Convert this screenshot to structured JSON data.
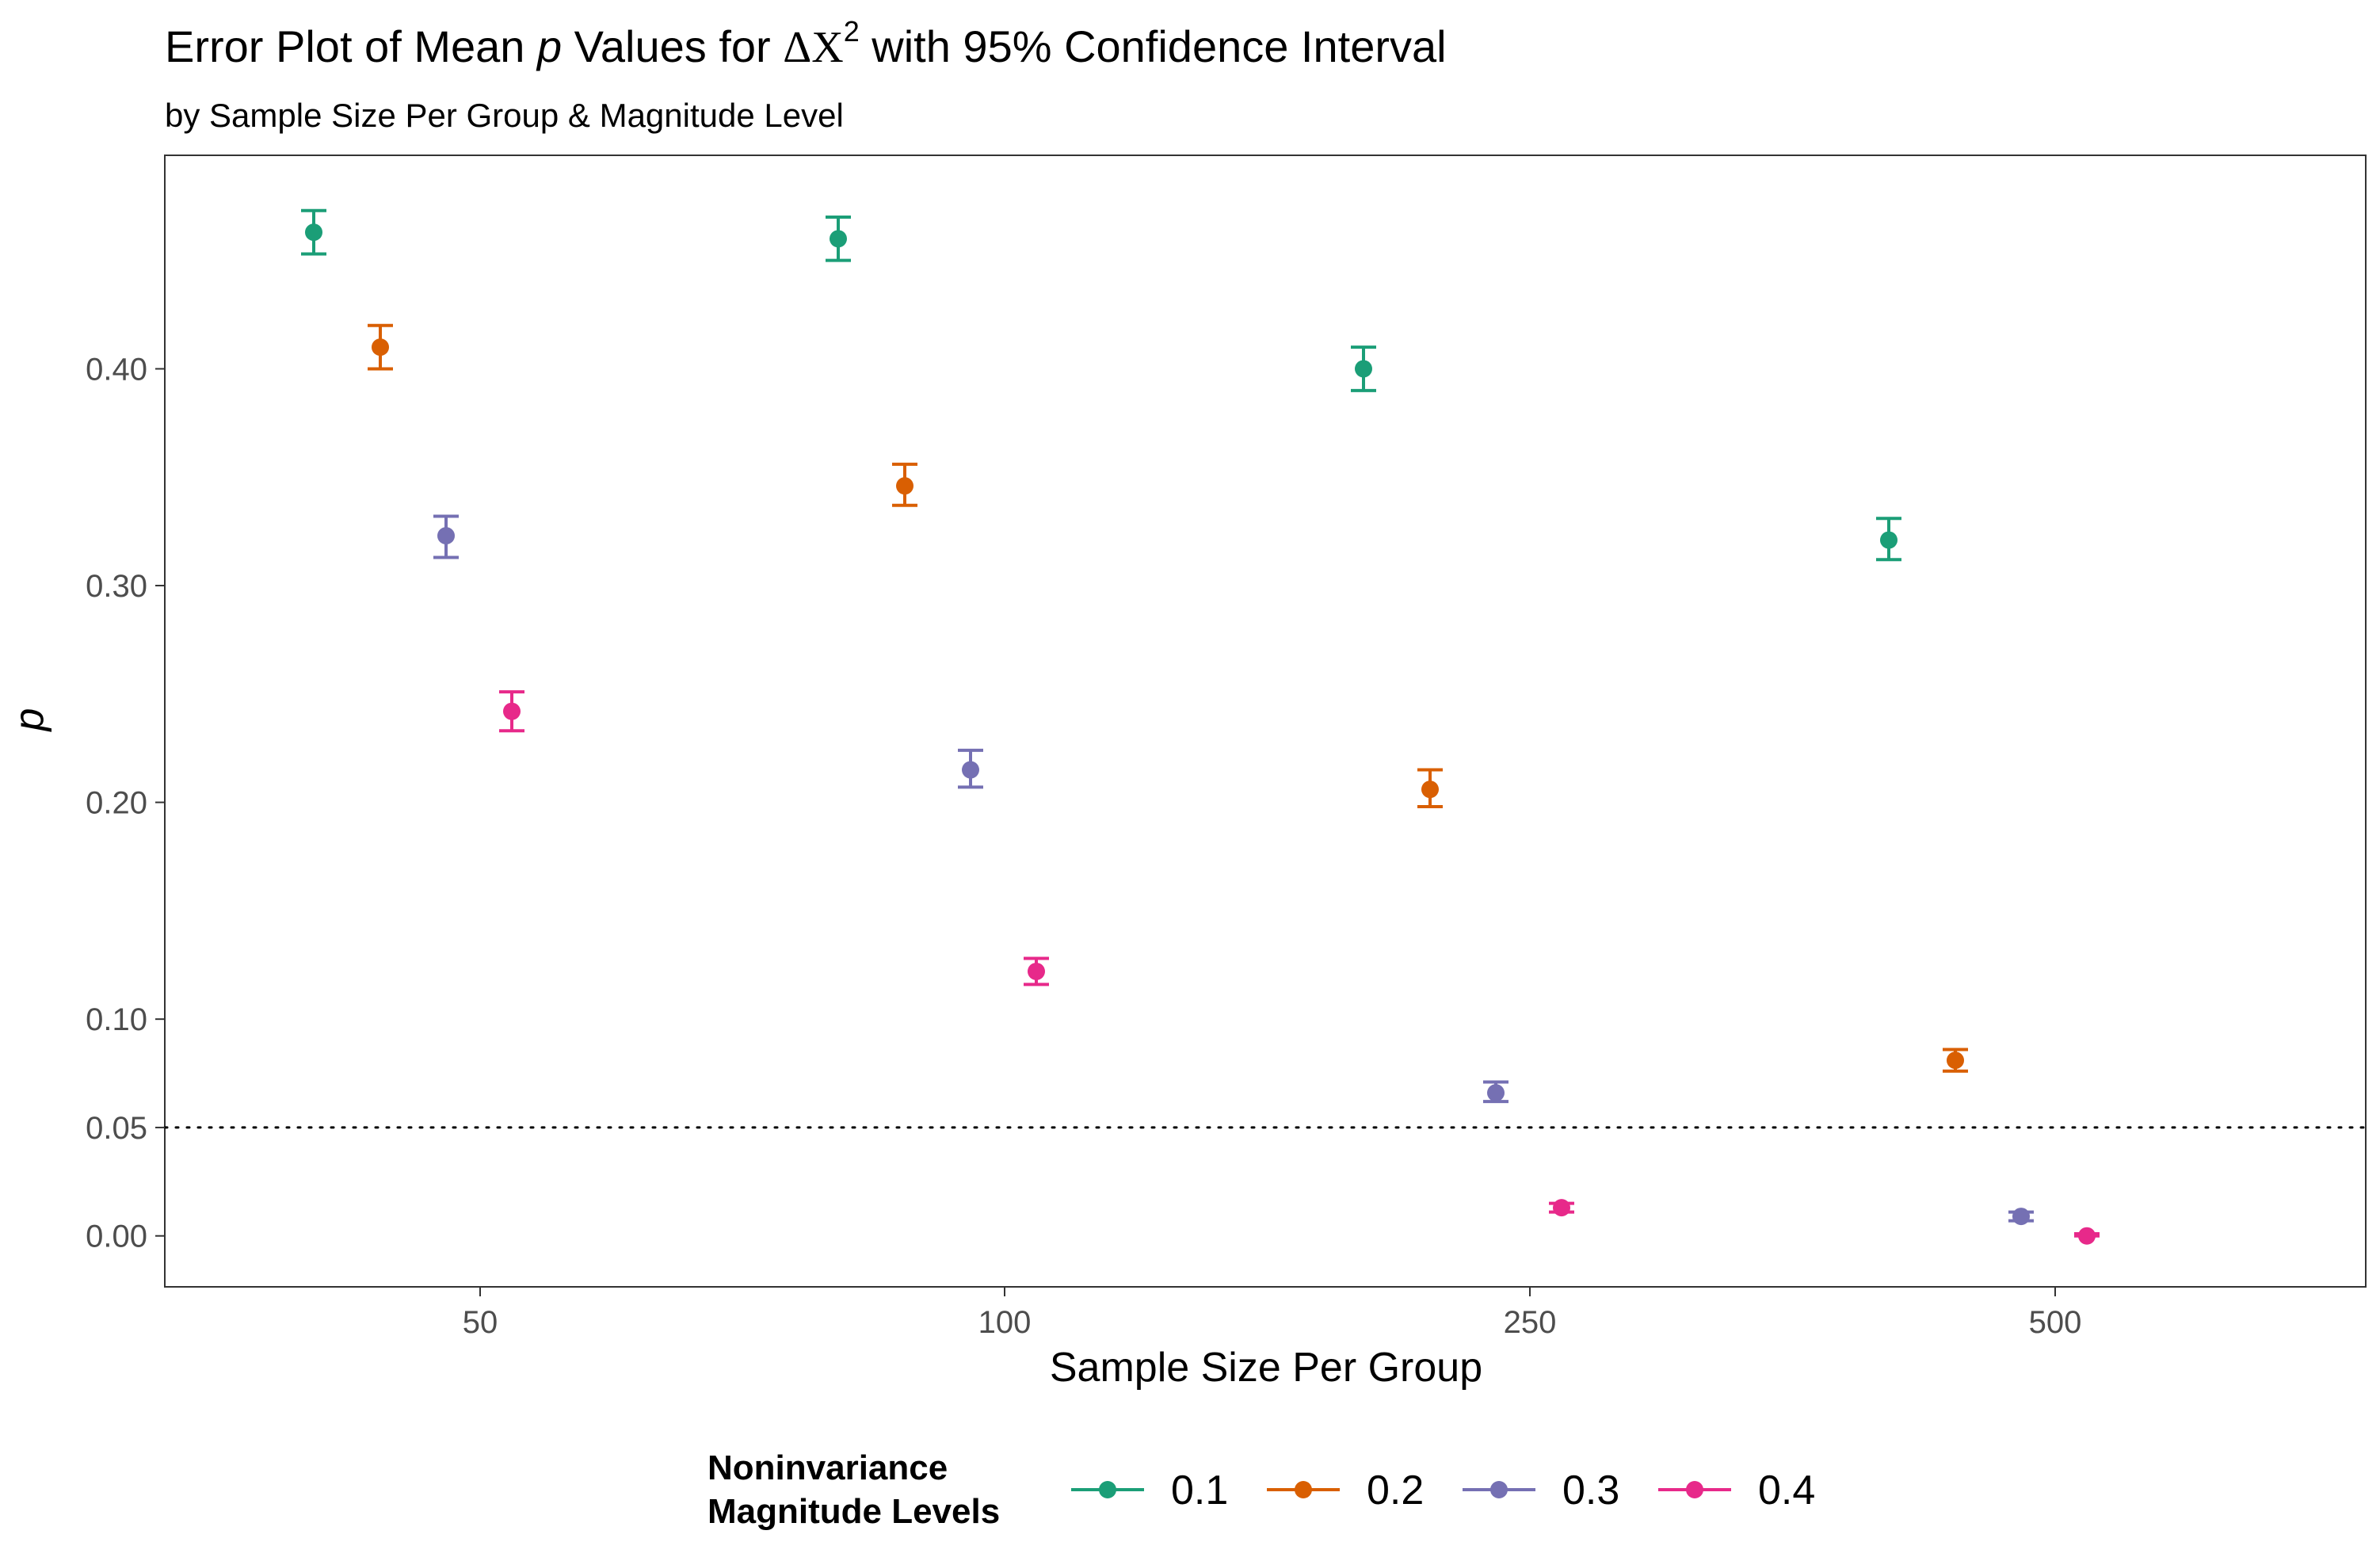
{
  "chart_data": {
    "type": "scatter",
    "title_parts": {
      "before": "Error Plot of Mean ",
      "p": "p",
      "middle": " Values for ",
      "delta": "ΔX",
      "sup": "2",
      "after": " with 95% Confidence Interval"
    },
    "subtitle": "by Sample Size Per Group & Magnitude Level",
    "xlabel": "Sample Size Per Group",
    "ylabel": "p",
    "categories": [
      "50",
      "100",
      "250",
      "500"
    ],
    "yticks": [
      "0.00",
      "0.05",
      "0.10",
      "0.20",
      "0.30",
      "0.40"
    ],
    "ytick_values": [
      0,
      0.05,
      0.1,
      0.2,
      0.3,
      0.4
    ],
    "ylim": [
      -0.0235,
      0.4985
    ],
    "reference_line": 0.05,
    "legend": {
      "title_line1": "Noninvariance",
      "title_line2": "Magnitude Levels",
      "placement": "bottom"
    },
    "series": [
      {
        "name": "0.1",
        "color": "#1b9e77",
        "values": [
          0.463,
          0.46,
          0.4,
          0.321
        ],
        "lower": [
          0.453,
          0.45,
          0.39,
          0.312
        ],
        "upper": [
          0.473,
          0.47,
          0.41,
          0.331
        ]
      },
      {
        "name": "0.2",
        "color": "#d95f02",
        "values": [
          0.41,
          0.346,
          0.206,
          0.081
        ],
        "lower": [
          0.4,
          0.337,
          0.198,
          0.076
        ],
        "upper": [
          0.42,
          0.356,
          0.215,
          0.086
        ]
      },
      {
        "name": "0.3",
        "color": "#7570b3",
        "values": [
          0.323,
          0.215,
          0.066,
          0.009
        ],
        "lower": [
          0.313,
          0.207,
          0.062,
          0.007
        ],
        "upper": [
          0.332,
          0.224,
          0.071,
          0.011
        ]
      },
      {
        "name": "0.4",
        "color": "#e7298a",
        "values": [
          0.242,
          0.122,
          0.013,
          0.0
        ],
        "lower": [
          0.233,
          0.116,
          0.011,
          0.0
        ],
        "upper": [
          0.251,
          0.128,
          0.015,
          0.001
        ]
      }
    ]
  }
}
